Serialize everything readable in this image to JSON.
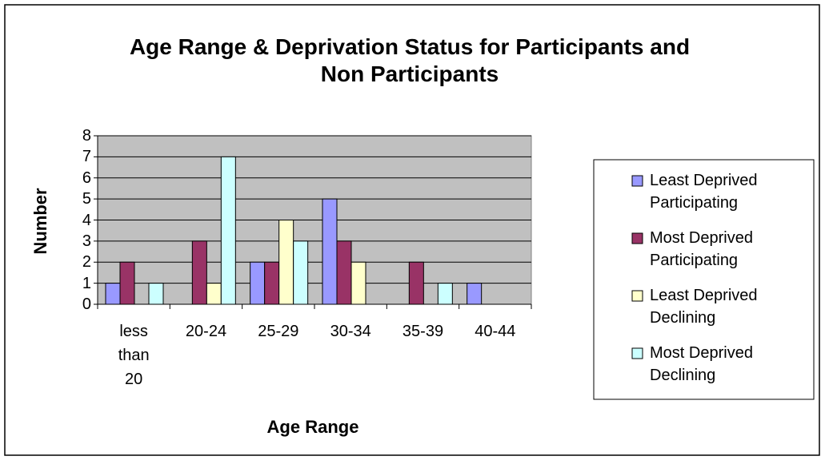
{
  "chart_data": {
    "type": "bar",
    "title": "Age Range & Deprivation Status for Participants and Non Participants",
    "x_label": "Age Range",
    "y_label": "Number",
    "categories": [
      "less than 20",
      "20-24",
      "25-29",
      "30-34",
      "35-39",
      "40-44"
    ],
    "series": [
      {
        "name": "Least Deprived Participating",
        "color": "#9999ff",
        "values": [
          1,
          0,
          2,
          5,
          0,
          1
        ]
      },
      {
        "name": "Most Deprived Participating",
        "color": "#993366",
        "values": [
          2,
          3,
          2,
          3,
          2,
          0
        ]
      },
      {
        "name": "Least Deprived Declining",
        "color": "#ffffcc",
        "values": [
          0,
          1,
          4,
          2,
          0,
          0
        ]
      },
      {
        "name": "Most Deprived Declining",
        "color": "#ccffff",
        "values": [
          1,
          7,
          3,
          0,
          1,
          0
        ]
      }
    ],
    "ylim": [
      0,
      8
    ],
    "yticks": [
      0,
      1,
      2,
      3,
      4,
      5,
      6,
      7,
      8
    ],
    "grid": true,
    "legend": "right"
  }
}
